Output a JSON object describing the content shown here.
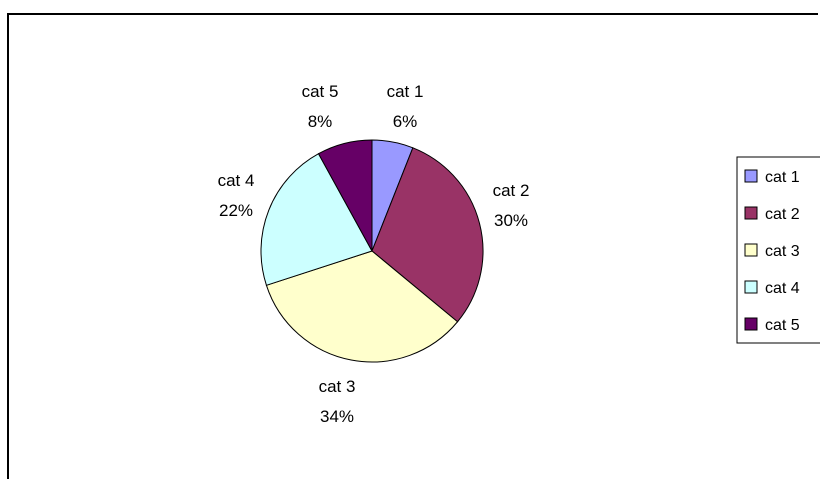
{
  "chart_data": {
    "type": "pie",
    "categories": [
      "cat 1",
      "cat 2",
      "cat 3",
      "cat 4",
      "cat 5"
    ],
    "values": [
      6,
      30,
      34,
      22,
      8
    ],
    "labels": [
      "6%",
      "30%",
      "34%",
      "22%",
      "8%"
    ],
    "colors": [
      "#9999ff",
      "#993366",
      "#ffffcc",
      "#ccffff",
      "#660066"
    ],
    "legend_position": "right"
  }
}
